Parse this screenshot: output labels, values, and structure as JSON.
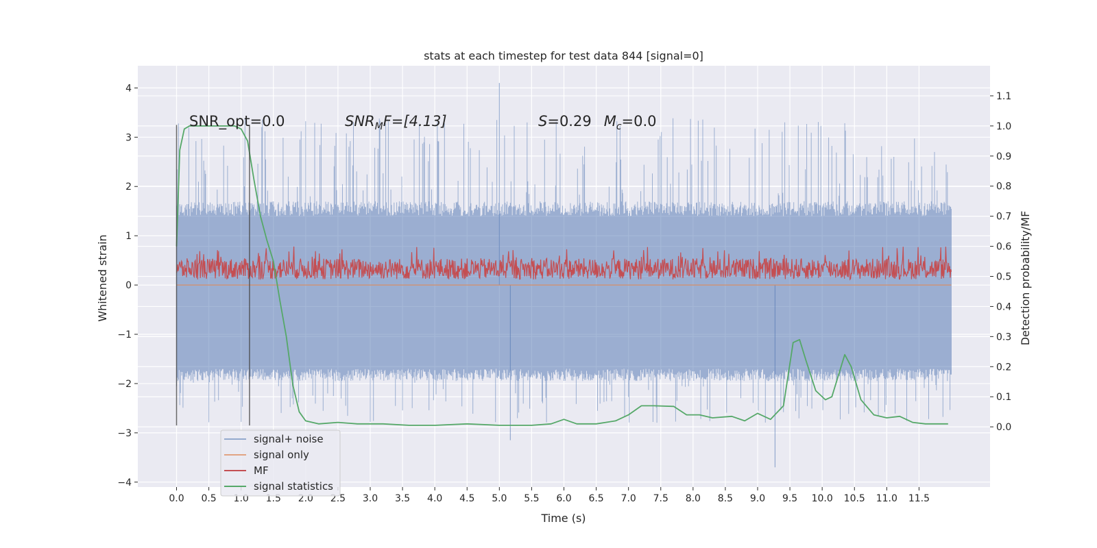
{
  "chart_data": {
    "type": "line",
    "title": "stats at each timestep for test data 844 [signal=0]",
    "xlabel": "Time (s)",
    "ylabel": "Whitened strain",
    "y2label": "Detection probability/MF",
    "xlim": [
      -0.6,
      12.6
    ],
    "ylim": [
      -4.1,
      4.45
    ],
    "y2lim": [
      -0.2,
      1.2
    ],
    "x_ticks": [
      0.0,
      0.5,
      1.0,
      1.5,
      2.0,
      2.5,
      3.0,
      3.5,
      4.0,
      4.5,
      5.0,
      5.5,
      6.0,
      6.5,
      7.0,
      7.5,
      8.0,
      8.5,
      9.0,
      9.5,
      10.0,
      10.5,
      11.0,
      11.5
    ],
    "x_tick_labels": [
      "0.0",
      "0.5",
      "1.0",
      "1.5",
      "2.0",
      "2.5",
      "3.0",
      "3.5",
      "4.0",
      "4.5",
      "5.0",
      "5.5",
      "6.0",
      "6.5",
      "7.0",
      "7.5",
      "8.0",
      "8.5",
      "9.0",
      "9.5",
      "10.0",
      "10.5",
      "11.0",
      "11.5"
    ],
    "y_ticks": [
      -4,
      -3,
      -2,
      -1,
      0,
      1,
      2,
      3,
      4
    ],
    "y_tick_labels": [
      "−4",
      "−3",
      "−2",
      "−1",
      "0",
      "1",
      "2",
      "3",
      "4"
    ],
    "y2_ticks": [
      0.0,
      0.1,
      0.2,
      0.3,
      0.4,
      0.5,
      0.6,
      0.7,
      0.8,
      0.9,
      1.0,
      1.1
    ],
    "y2_tick_labels": [
      "0.0",
      "0.1",
      "0.2",
      "0.3",
      "0.4",
      "0.5",
      "0.6",
      "0.7",
      "0.8",
      "0.9",
      "1.0",
      "1.1"
    ],
    "grid": true,
    "legend_placement": "lower-left",
    "annotations": {
      "snr_opt": "SNR_opt=0.0",
      "snr_mf": "SNR",
      "snr_mf_sub": "M",
      "snr_mf_rest": "F=[4.13]",
      "s_label": "S",
      "s_value": "=0.29",
      "mc_label": "M",
      "mc_sub": "c",
      "mc_value": "=0.0"
    },
    "vlines": [
      0.0,
      1.13
    ],
    "series": [
      {
        "name": "signal+ noise",
        "axis": "left",
        "color": "#4c72b0",
        "style": "dense noise spanning roughly -1.7 to +1.4, peaks to about -3.7 and +4.1",
        "x_range": [
          0.0,
          12.0
        ],
        "typical_min": -1.7,
        "typical_max": 1.4,
        "extremes": [
          {
            "x": 5.0,
            "y": 4.1
          },
          {
            "x": 9.27,
            "y": -3.7
          },
          {
            "x": 5.17,
            "y": -3.15
          }
        ]
      },
      {
        "name": "signal only",
        "axis": "left",
        "color": "#dd8452",
        "x_range": [
          0.0,
          12.0
        ],
        "value": 0.0
      },
      {
        "name": "MF",
        "axis": "right",
        "color": "#c44e52",
        "x_range": [
          0.0,
          12.0
        ],
        "typical_min": 0.49,
        "typical_max": 0.56,
        "peak": 0.6
      },
      {
        "name": "signal statistics",
        "axis": "right",
        "color": "#55a868",
        "x": [
          0.0,
          0.05,
          0.12,
          0.2,
          0.4,
          0.6,
          0.8,
          0.9,
          1.0,
          1.1,
          1.2,
          1.3,
          1.4,
          1.5,
          1.6,
          1.7,
          1.8,
          1.9,
          2.0,
          2.2,
          2.5,
          2.8,
          3.2,
          3.6,
          4.0,
          4.5,
          5.0,
          5.5,
          5.8,
          6.0,
          6.2,
          6.5,
          6.8,
          7.0,
          7.2,
          7.4,
          7.7,
          7.9,
          8.1,
          8.3,
          8.6,
          8.8,
          9.0,
          9.2,
          9.4,
          9.55,
          9.65,
          9.75,
          9.9,
          10.05,
          10.15,
          10.25,
          10.35,
          10.45,
          10.6,
          10.8,
          11.0,
          11.2,
          11.4,
          11.6,
          11.8,
          11.95
        ],
        "values": [
          0.6,
          0.92,
          0.99,
          1.0,
          1.0,
          1.0,
          1.0,
          1.0,
          0.99,
          0.95,
          0.82,
          0.7,
          0.62,
          0.55,
          0.42,
          0.3,
          0.14,
          0.05,
          0.02,
          0.01,
          0.015,
          0.01,
          0.01,
          0.005,
          0.005,
          0.01,
          0.005,
          0.005,
          0.01,
          0.025,
          0.01,
          0.01,
          0.02,
          0.04,
          0.07,
          0.07,
          0.068,
          0.04,
          0.04,
          0.03,
          0.035,
          0.02,
          0.045,
          0.025,
          0.07,
          0.28,
          0.29,
          0.22,
          0.12,
          0.09,
          0.1,
          0.17,
          0.24,
          0.2,
          0.09,
          0.04,
          0.03,
          0.035,
          0.015,
          0.01,
          0.01,
          0.01
        ]
      }
    ]
  }
}
